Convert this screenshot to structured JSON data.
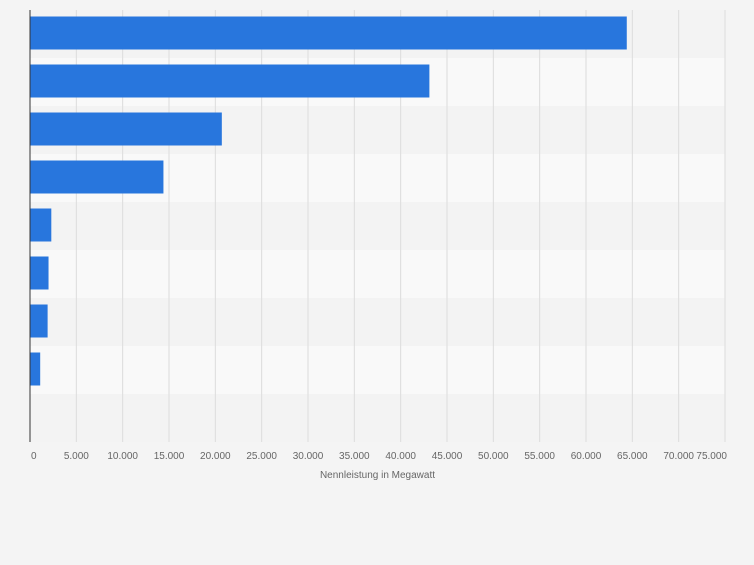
{
  "colors": {
    "page_background": "#f4f4f4",
    "band_even": "#f3f3f3",
    "band_odd": "#f9f9f9",
    "grid": "#dcdcdc",
    "axis": "#333333",
    "bar": "#2876dd",
    "tick_text": "#666666"
  },
  "chart_data": {
    "type": "bar",
    "orientation": "horizontal",
    "categories": [
      "",
      "",
      "",
      "",
      "",
      "",
      "",
      "",
      ""
    ],
    "values": [
      64400,
      43100,
      20700,
      14400,
      2300,
      2000,
      1900,
      1100,
      null
    ],
    "xlim": [
      0,
      75000
    ],
    "xticks": [
      0,
      5000,
      10000,
      15000,
      20000,
      25000,
      30000,
      35000,
      40000,
      45000,
      50000,
      55000,
      60000,
      65000,
      70000,
      75000
    ],
    "xtick_labels": [
      "0",
      "5.000",
      "10.000",
      "15.000",
      "20.000",
      "25.000",
      "30.000",
      "35.000",
      "40.000",
      "45.000",
      "50.000",
      "55.000",
      "60.000",
      "65.000",
      "70.000",
      "75.000"
    ],
    "xlabel": "Nennleistung in Megawatt",
    "ylabel": "",
    "title": "",
    "grid": true,
    "legend": "none"
  }
}
